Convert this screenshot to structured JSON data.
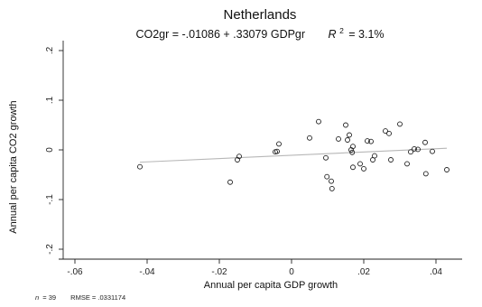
{
  "chart_data": {
    "type": "scatter",
    "title": "Netherlands",
    "subtitle": {
      "equation": "CO2gr = -.01086 + .33079 GDPgr",
      "r2_label": "R",
      "r2_exponent": "2",
      "r2_value": "= 3.1%"
    },
    "xlabel": "Annual per capita GDP growth",
    "ylabel": "Annual per capita CO2 growth",
    "xlim": [
      -0.06,
      0.045
    ],
    "ylim": [
      -0.22,
      0.22
    ],
    "xticks": [
      {
        "value": -0.06,
        "label": "-.06"
      },
      {
        "value": -0.04,
        "label": "-.04"
      },
      {
        "value": -0.02,
        "label": "-.02"
      },
      {
        "value": 0,
        "label": "0"
      },
      {
        "value": 0.02,
        "label": ".02"
      },
      {
        "value": 0.04,
        "label": ".04"
      }
    ],
    "yticks": [
      {
        "value": -0.2,
        "label": "-.2"
      },
      {
        "value": -0.1,
        "label": "-.1"
      },
      {
        "value": 0,
        "label": "0"
      },
      {
        "value": 0.1,
        "label": ".1"
      },
      {
        "value": 0.2,
        "label": ".2"
      }
    ],
    "fit": {
      "intercept": -0.01086,
      "slope": 0.33079,
      "x_range": [
        -0.042,
        0.043
      ]
    },
    "grid": false,
    "legend": "none",
    "points": [
      {
        "x": -0.042,
        "y": -0.034
      },
      {
        "x": -0.017,
        "y": -0.065
      },
      {
        "x": -0.015,
        "y": -0.02
      },
      {
        "x": -0.0145,
        "y": -0.013
      },
      {
        "x": -0.0045,
        "y": -0.004
      },
      {
        "x": -0.004,
        "y": -0.003
      },
      {
        "x": -0.0035,
        "y": 0.012
      },
      {
        "x": 0.005,
        "y": 0.024
      },
      {
        "x": 0.0075,
        "y": 0.057
      },
      {
        "x": 0.0095,
        "y": -0.016
      },
      {
        "x": 0.0098,
        "y": -0.054
      },
      {
        "x": 0.011,
        "y": -0.063
      },
      {
        "x": 0.0112,
        "y": -0.078
      },
      {
        "x": 0.013,
        "y": 0.022
      },
      {
        "x": 0.015,
        "y": 0.05
      },
      {
        "x": 0.0155,
        "y": 0.02
      },
      {
        "x": 0.016,
        "y": 0.03
      },
      {
        "x": 0.0165,
        "y": 0.0
      },
      {
        "x": 0.0168,
        "y": -0.005
      },
      {
        "x": 0.017,
        "y": 0.007
      },
      {
        "x": 0.017,
        "y": -0.035
      },
      {
        "x": 0.019,
        "y": -0.028
      },
      {
        "x": 0.02,
        "y": -0.038
      },
      {
        "x": 0.021,
        "y": 0.018
      },
      {
        "x": 0.022,
        "y": 0.017
      },
      {
        "x": 0.0225,
        "y": -0.02
      },
      {
        "x": 0.023,
        "y": -0.012
      },
      {
        "x": 0.026,
        "y": 0.038
      },
      {
        "x": 0.027,
        "y": 0.033
      },
      {
        "x": 0.0275,
        "y": -0.02
      },
      {
        "x": 0.03,
        "y": 0.052
      },
      {
        "x": 0.032,
        "y": -0.028
      },
      {
        "x": 0.033,
        "y": -0.004
      },
      {
        "x": 0.034,
        "y": 0.002
      },
      {
        "x": 0.035,
        "y": 0.001
      },
      {
        "x": 0.037,
        "y": 0.015
      },
      {
        "x": 0.0372,
        "y": -0.048
      },
      {
        "x": 0.039,
        "y": -0.003
      },
      {
        "x": 0.043,
        "y": -0.04
      }
    ],
    "footnote": {
      "n_label": "n",
      "n_value": "= 39",
      "rmse": "RMSE = .0331174"
    }
  }
}
